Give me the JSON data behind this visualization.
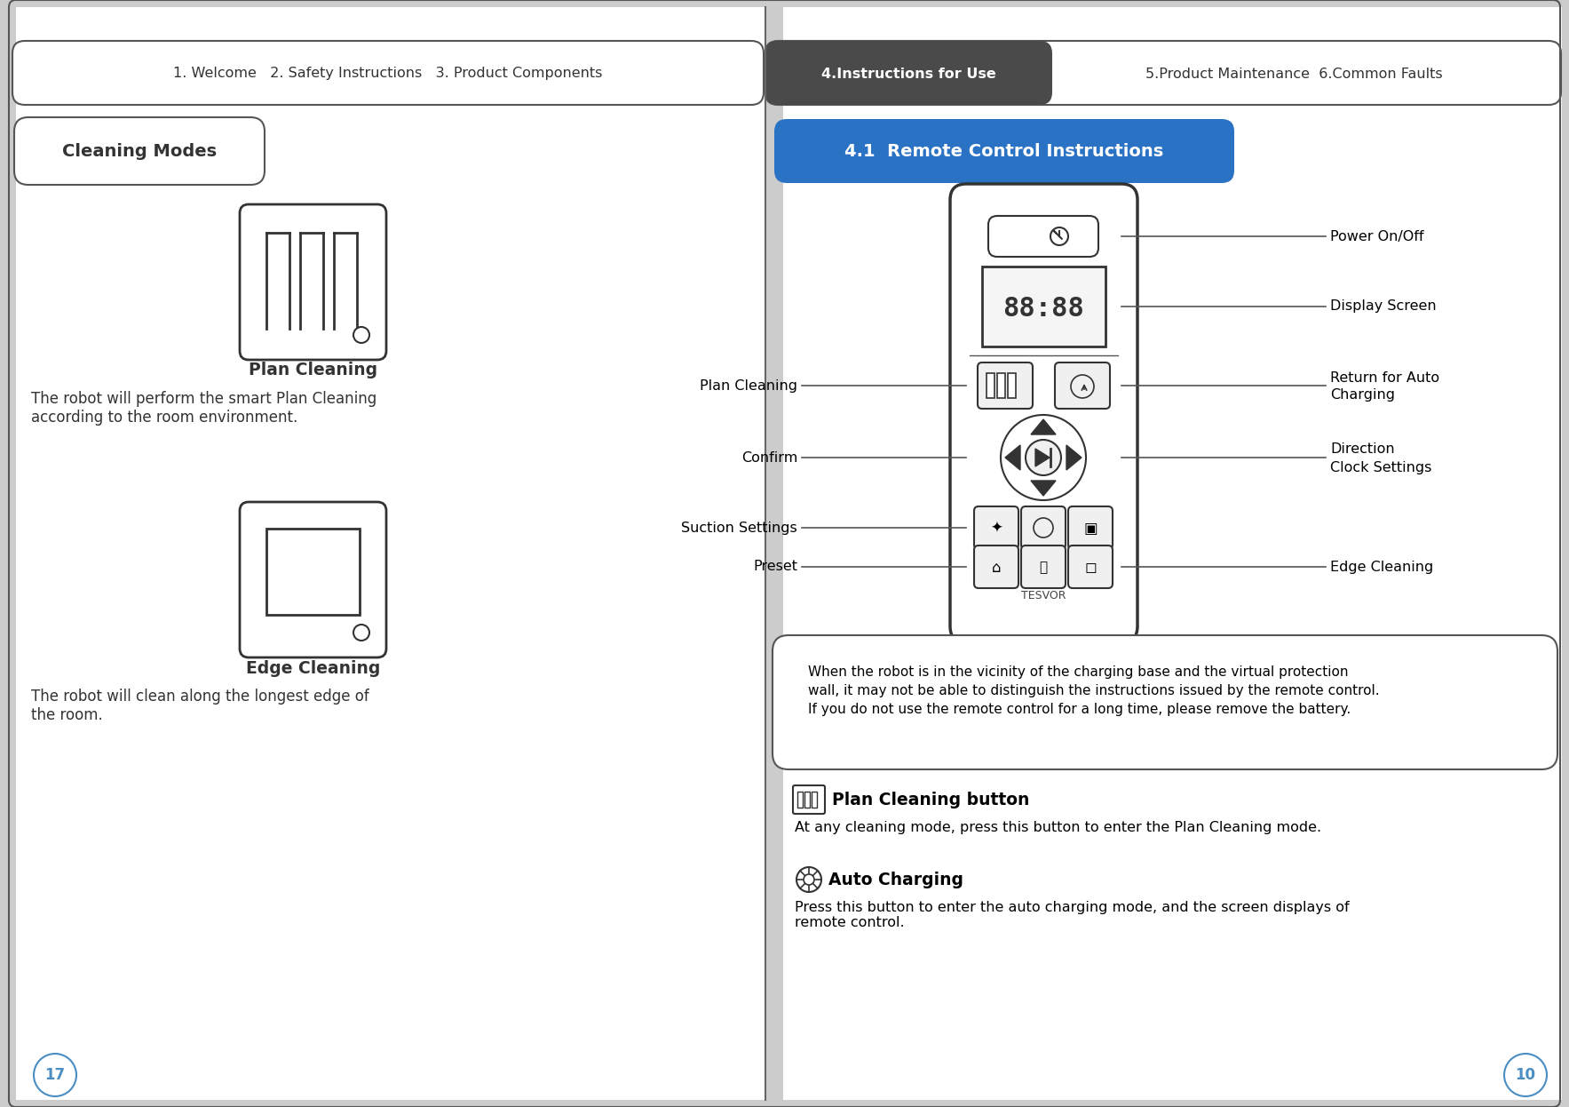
{
  "nav_left_text": "1. Welcome   2. Safety Instructions   3. Product Components",
  "nav_right_dark_text": "4.Instructions for Use",
  "nav_right_light_text": "5.Product Maintenance  6.Common Faults",
  "nav_dark_bg": "#4a4a4a",
  "nav_border_color": "#666666",
  "cleaning_modes_label": "Cleaning Modes",
  "plan_cleaning_title": "Plan Cleaning",
  "plan_cleaning_desc": "The robot will perform the smart Plan Cleaning\naccording to the room environment.",
  "edge_cleaning_title": "Edge Cleaning",
  "edge_cleaning_desc": "The robot will clean along the longest edge of\nthe room.",
  "section_title": "4.1  Remote Control Instructions",
  "section_title_bg": "#2a72c3",
  "label_left": [
    "Plan Cleaning",
    "Confirm",
    "Suction Settings",
    "Preset"
  ],
  "label_right": [
    "Power On/Off",
    "Display Screen",
    "Return for Auto\nCharging",
    "Direction",
    "Clock Settings",
    "Edge Cleaning"
  ],
  "warning_text": "When the robot is in the vicinity of the charging base and the virtual protection\nwall, it may not be able to distinguish the instructions issued by the remote control.\nIf you do not use the remote control for a long time, please remove the battery.",
  "plan_btn_title": "Plan Cleaning button",
  "plan_btn_desc": "At any cleaning mode, press this button to enter the Plan Cleaning mode.",
  "auto_title": "Auto Charging",
  "auto_desc": "Press this button to enter the auto charging mode, and the screen displays of\nremote control.",
  "page_left": "17",
  "page_right": "10",
  "dark_gray": "#444444",
  "mid_gray": "#666666",
  "light_gray": "#cccccc",
  "white": "#ffffff",
  "black": "#000000",
  "blue_page": "#4a8ec4"
}
